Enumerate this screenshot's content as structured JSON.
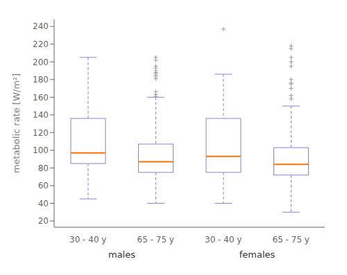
{
  "chart_data": {
    "type": "box",
    "ylabel": "metabolic rate [W/m²]",
    "ylim": [
      13,
      248
    ],
    "yticks": [
      20,
      40,
      60,
      80,
      100,
      120,
      140,
      160,
      180,
      200,
      220,
      240
    ],
    "grid": false,
    "groups": [
      {
        "name": "males",
        "categories": [
          "30 - 40 y",
          "65 - 75 y"
        ],
        "boxes": [
          {
            "whisker_low": 45,
            "q1": 85,
            "median": 97,
            "q3": 136,
            "whisker_high": 205,
            "outliers": []
          },
          {
            "whisker_low": 40,
            "q1": 75,
            "median": 87,
            "q3": 107,
            "whisker_high": 160,
            "outliers": [
              161,
              163,
              166,
              181,
              183,
              185,
              187,
              188,
              190,
              193,
              195,
              202,
              205
            ]
          }
        ]
      },
      {
        "name": "females",
        "categories": [
          "30 - 40 y",
          "65 - 75 y"
        ],
        "boxes": [
          {
            "whisker_low": 40,
            "q1": 75,
            "median": 93,
            "q3": 136,
            "whisker_high": 186,
            "outliers": [
              237
            ]
          },
          {
            "whisker_low": 30,
            "q1": 72,
            "median": 84,
            "q3": 103,
            "whisker_high": 150,
            "outliers": [
              158,
              162,
              170,
              175,
              176,
              180,
              195,
              200,
              205,
              215,
              218
            ]
          }
        ]
      }
    ]
  }
}
